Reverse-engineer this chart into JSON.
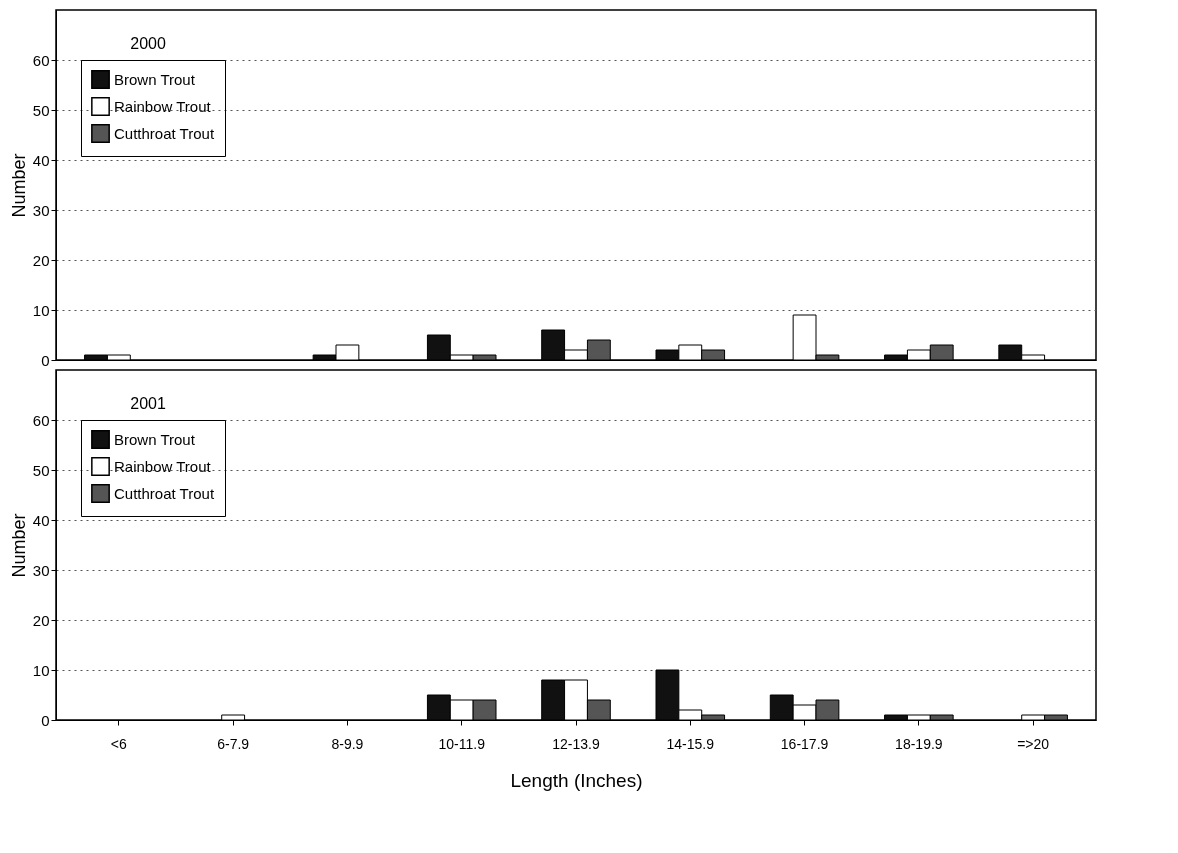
{
  "chart_data": [
    {
      "type": "bar",
      "title": "2000",
      "ylabel": "Number",
      "categories": [
        null,
        null,
        null,
        null,
        null,
        null,
        null,
        null,
        null
      ],
      "series": [
        {
          "name": "Brown Trout",
          "color": "#111111",
          "values": [
            1,
            0,
            1,
            5,
            6,
            2,
            0,
            1,
            3
          ]
        },
        {
          "name": "Rainbow Trout",
          "color": "#ffffff",
          "values": [
            1,
            0,
            3,
            1,
            2,
            3,
            9,
            2,
            1
          ]
        },
        {
          "name": "Cutthroat Trout",
          "color": "#555555",
          "values": [
            0,
            0,
            0,
            1,
            4,
            2,
            1,
            3,
            0
          ]
        }
      ],
      "ylim": [
        0,
        70
      ],
      "yticks": [
        0,
        10,
        20,
        30,
        40,
        50,
        60
      ],
      "grid": "y",
      "legend": "top left",
      "tick_labels": "y"
    },
    {
      "type": "bar",
      "title": "2001",
      "xlabel": "Length (Inches)",
      "ylabel": "Number",
      "categories": [
        "<6",
        "6-7.9",
        "8-9.9",
        "10-11.9",
        "12-13.9",
        "14-15.9",
        "16-17.9",
        "18-19.9",
        "=>20"
      ],
      "series": [
        {
          "name": "Brown Trout",
          "color": "#111111",
          "values": [
            0,
            0,
            0,
            5,
            8,
            10,
            5,
            1,
            0
          ]
        },
        {
          "name": "Rainbow Trout",
          "color": "#ffffff",
          "values": [
            0,
            1,
            0,
            4,
            8,
            2,
            3,
            1,
            1
          ]
        },
        {
          "name": "Cutthroat Trout",
          "color": "#555555",
          "values": [
            0,
            0,
            0,
            4,
            4,
            1,
            4,
            1,
            1
          ]
        }
      ],
      "ylim": [
        0,
        70
      ],
      "yticks": [
        0,
        10,
        20,
        30,
        40,
        50,
        60
      ],
      "grid": "y",
      "legend": "top left"
    }
  ]
}
